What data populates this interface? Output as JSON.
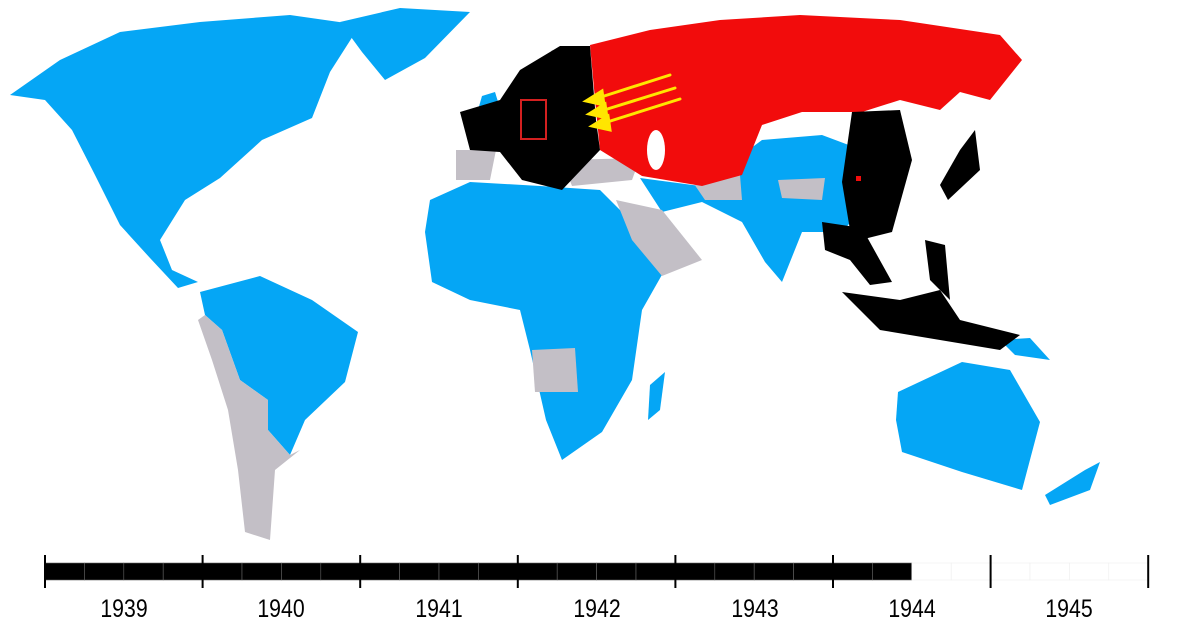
{
  "colors": {
    "allies": "#05a6f5",
    "soviet_union": "#f20c0c",
    "axis": "#000000",
    "neutral": "#c3bfc6",
    "arrows": "#ffe600",
    "highlight_box": "#d42020"
  },
  "map": {
    "arrows": "soviet-advance-westward",
    "highlight": "germany-box"
  },
  "timeline": {
    "years": [
      "1939",
      "1940",
      "1941",
      "1942",
      "1943",
      "1944",
      "1945"
    ],
    "segments_per_year": 4,
    "progress_quarters": 22
  }
}
